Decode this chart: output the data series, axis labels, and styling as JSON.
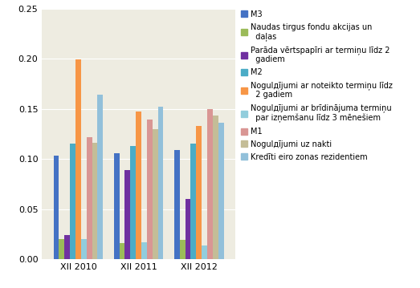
{
  "categories": [
    "XII 2010",
    "XII 2011",
    "XII 2012"
  ],
  "series": [
    {
      "label": "M3",
      "color": "#4472C4",
      "values": [
        0.103,
        0.106,
        0.109
      ]
    },
    {
      "label": "Naudas tirgus fondu akcijas un\n  daļas",
      "color": "#9BBB59",
      "values": [
        0.02,
        0.016,
        0.019
      ]
    },
    {
      "label": "Parāda vērtspapīri ar termiņu līdz 2\n  gadiem",
      "color": "#7030A0",
      "values": [
        0.024,
        0.089,
        0.06
      ]
    },
    {
      "label": "M2",
      "color": "#4BACC6",
      "values": [
        0.115,
        0.113,
        0.115
      ]
    },
    {
      "label": "Nogulдījumi ar noteikto termiņu līdz\n  2 gadiem",
      "color": "#F79646",
      "values": [
        0.199,
        0.147,
        0.133
      ]
    },
    {
      "label": "Nogulдījumi ar brīdinājuma termiņu\n  par izņemšanu līdz 3 mēnešiem",
      "color": "#92CDDC",
      "values": [
        0.02,
        0.017,
        0.014
      ]
    },
    {
      "label": "M1",
      "color": "#D99694",
      "values": [
        0.122,
        0.139,
        0.15
      ]
    },
    {
      "label": "Nogulдījumi uz nakti",
      "color": "#C4BD97",
      "values": [
        0.116,
        0.13,
        0.143
      ]
    },
    {
      "label": "Kredīti eiro zonas rezidentiem",
      "color": "#92C0DA",
      "values": [
        0.164,
        0.152,
        0.136
      ]
    }
  ],
  "ylim": [
    0.0,
    0.25
  ],
  "yticks": [
    0.0,
    0.05,
    0.1,
    0.15,
    0.2,
    0.25
  ],
  "plot_bg_color": "#EEECE1",
  "fig_bg_color": "#FFFFFF",
  "grid_color": "#FFFFFF",
  "fontsize": 8,
  "legend_fontsize": 7
}
